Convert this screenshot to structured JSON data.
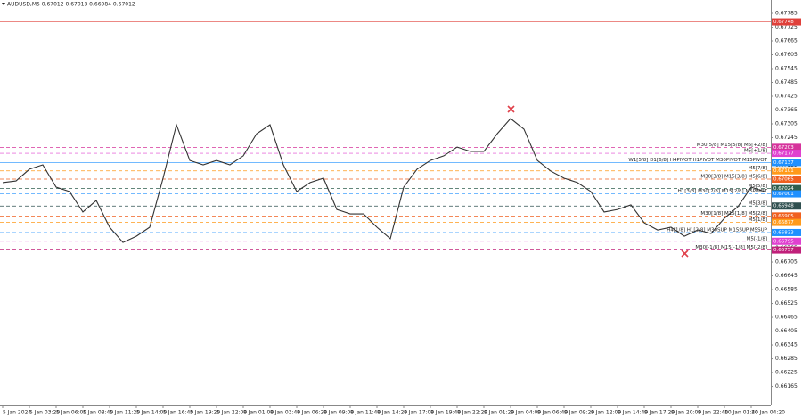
{
  "chart_data": {
    "type": "line",
    "title": "AUDUSD,M5  0.67012 0.67013 0.66984 0.67012",
    "categories": [
      "5 Jan 2024",
      null,
      "5 Jan 03:20",
      null,
      "5 Jan 06:00",
      null,
      "5 Jan 08:40",
      null,
      "5 Jan 11:20",
      null,
      "5 Jan 14:00",
      null,
      "5 Jan 16:40",
      null,
      "5 Jan 19:20",
      null,
      "5 Jan 22:00",
      null,
      "8 Jan 01:00",
      null,
      "8 Jan 03:40",
      null,
      "8 Jan 06:20",
      null,
      "8 Jan 09:00",
      null,
      "8 Jan 11:40",
      null,
      "8 Jan 14:20",
      null,
      "8 Jan 17:00",
      null,
      "8 Jan 19:40",
      null,
      "8 Jan 22:20",
      null,
      "9 Jan 01:20",
      null,
      "9 Jan 04:00",
      null,
      "9 Jan 06:40",
      null,
      "9 Jan 09:20",
      null,
      "9 Jan 12:00",
      null,
      "9 Jan 14:40",
      null,
      "9 Jan 17:20",
      null,
      "9 Jan 20:00",
      null,
      "9 Jan 22:40",
      null,
      "10 Jan 01:40",
      null,
      "10 Jan 04:20",
      null
    ],
    "series": [
      {
        "color": "#333333",
        "values": [
          0.6705,
          0.67057,
          0.67108,
          0.67127,
          0.6703,
          0.67011,
          0.66922,
          0.66972,
          0.66856,
          0.6679,
          0.66817,
          0.66856,
          0.67069,
          0.67301,
          0.67146,
          0.67127,
          0.67146,
          0.67127,
          0.67166,
          0.67262,
          0.67301,
          0.67127,
          0.67011,
          0.6705,
          0.67069,
          0.66933,
          0.66914,
          0.66914,
          0.66856,
          0.66806,
          0.6703,
          0.67108,
          0.67146,
          0.67166,
          0.67204,
          0.67185,
          0.67185,
          0.67262,
          0.67328,
          0.67282,
          0.67146,
          0.671,
          0.67069,
          0.6705,
          0.67011,
          0.66922,
          0.66933,
          0.66953,
          0.66875,
          0.66844,
          0.66856,
          0.66817,
          0.66844,
          0.66829,
          0.66895,
          0.66945,
          0.6703,
          0.67011
        ]
      }
    ],
    "ylim": [
      0.66082,
      0.67843
    ],
    "yticks": [
      0.67785,
      0.67725,
      0.67665,
      0.67605,
      0.67545,
      0.67485,
      0.67425,
      0.67365,
      0.67305,
      0.67245,
      0.67185,
      0.67125,
      0.67065,
      0.67005,
      0.66945,
      0.66885,
      0.66825,
      0.66765,
      0.66705,
      0.66645,
      0.66585,
      0.66525,
      0.66465,
      0.66405,
      0.66345,
      0.66285,
      0.66225,
      0.66165
    ],
    "levels": [
      {
        "value": 0.67748,
        "color": "#e0403a",
        "dash": false
      },
      {
        "label": "M30[5/8] M15[5/8] M5[+2/8]",
        "value": 0.67203,
        "color": "#d6339c",
        "dash": true
      },
      {
        "label": "M5[+1/8]",
        "value": 0.67177,
        "color": "#e040d0",
        "dash": true
      },
      {
        "label": "W1[5/8] D1[6/8] H4PIVOT H1PIVOT M30PIVOT M15PIVOT",
        "value": 0.67137,
        "color": "#1e90ff",
        "dash": false
      },
      {
        "label": "M5[7/8]",
        "value": 0.67101,
        "color": "#ff9a1a",
        "dash": true
      },
      {
        "label": "M30[3/8] M15[3/8] M5[6/8]",
        "value": 0.67065,
        "color": "#f06020",
        "dash": true
      },
      {
        "label": "M5[5/8]",
        "value": 0.67024,
        "color": "#2f5f4f",
        "dash": true
      },
      {
        "label": "H1[3/8] M30[2/8] M15[2/8] M5PIVOT",
        "value": 0.67001,
        "color": "#1e90ff",
        "dash": true
      },
      {
        "label": "M5[3/8]",
        "value": 0.66948,
        "color": "#2f4f4f",
        "dash": true
      },
      {
        "label": "M30[1/8] M15[1/8] M5[2/8]",
        "value": 0.66905,
        "color": "#f06020",
        "dash": true
      },
      {
        "label": "M5[1/8]",
        "value": 0.66877,
        "color": "#ff9a1a",
        "dash": true
      },
      {
        "label": "H4[1/8] H1[2/8] M30SUP M15SUP M5SUP",
        "value": 0.66833,
        "color": "#1e90ff",
        "dash": true
      },
      {
        "label": "M5[-1/8]",
        "value": 0.66795,
        "color": "#e040d0",
        "dash": true
      },
      {
        "label": "M30[-1/8] M15[-1/8] M5[-2/8]",
        "value": 0.66757,
        "color": "#c0207a",
        "dash": true
      }
    ]
  }
}
